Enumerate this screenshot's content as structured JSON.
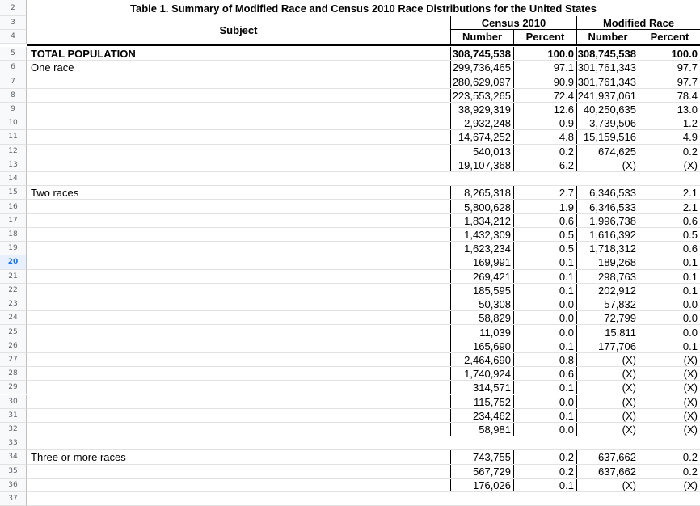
{
  "table": {
    "title": "Table 1. Summary of Modified Race and Census 2010 Race Distributions for the United States",
    "subject_header": "Subject",
    "group1": "Census 2010",
    "group2": "Modified Race",
    "col_number": "Number",
    "col_percent": "Percent"
  },
  "header_rownums": [
    "2",
    "3",
    "4"
  ],
  "rows": [
    {
      "n": "5",
      "subject": "TOTAL POPULATION",
      "bold": true,
      "c1": "308,745,538",
      "c2": "100.0",
      "c3": "308,745,538",
      "c4": "100.0"
    },
    {
      "n": "6",
      "subject": "One race",
      "c1": "299,736,465",
      "c2": "97.1",
      "c3": "301,761,343",
      "c4": "97.7"
    },
    {
      "n": "7",
      "subject": "",
      "c1": "280,629,097",
      "c2": "90.9",
      "c3": "301,761,343",
      "c4": "97.7"
    },
    {
      "n": "8",
      "subject": "",
      "c1": "223,553,265",
      "c2": "72.4",
      "c3": "241,937,061",
      "c4": "78.4"
    },
    {
      "n": "9",
      "subject": "",
      "c1": "38,929,319",
      "c2": "12.6",
      "c3": "40,250,635",
      "c4": "13.0"
    },
    {
      "n": "10",
      "subject": "",
      "c1": "2,932,248",
      "c2": "0.9",
      "c3": "3,739,506",
      "c4": "1.2"
    },
    {
      "n": "11",
      "subject": "",
      "c1": "14,674,252",
      "c2": "4.8",
      "c3": "15,159,516",
      "c4": "4.9"
    },
    {
      "n": "12",
      "subject": "",
      "c1": "540,013",
      "c2": "0.2",
      "c3": "674,625",
      "c4": "0.2"
    },
    {
      "n": "13",
      "subject": "",
      "c1": "19,107,368",
      "c2": "6.2",
      "c3": "(X)",
      "c4": "(X)"
    },
    {
      "n": "14",
      "subject": "",
      "c1": "",
      "c2": "",
      "c3": "",
      "c4": ""
    },
    {
      "n": "15",
      "subject": "Two races",
      "c1": "8,265,318",
      "c2": "2.7",
      "c3": "6,346,533",
      "c4": "2.1"
    },
    {
      "n": "16",
      "subject": "",
      "c1": "5,800,628",
      "c2": "1.9",
      "c3": "6,346,533",
      "c4": "2.1"
    },
    {
      "n": "17",
      "subject": "",
      "c1": "1,834,212",
      "c2": "0.6",
      "c3": "1,996,738",
      "c4": "0.6"
    },
    {
      "n": "18",
      "subject": "",
      "c1": "1,432,309",
      "c2": "0.5",
      "c3": "1,616,392",
      "c4": "0.5"
    },
    {
      "n": "19",
      "subject": "",
      "c1": "1,623,234",
      "c2": "0.5",
      "c3": "1,718,312",
      "c4": "0.6"
    },
    {
      "n": "20",
      "subject": "",
      "c1": "169,991",
      "c2": "0.1",
      "c3": "189,268",
      "c4": "0.1",
      "selected": true
    },
    {
      "n": "21",
      "subject": "",
      "c1": "269,421",
      "c2": "0.1",
      "c3": "298,763",
      "c4": "0.1"
    },
    {
      "n": "22",
      "subject": "",
      "c1": "185,595",
      "c2": "0.1",
      "c3": "202,912",
      "c4": "0.1"
    },
    {
      "n": "23",
      "subject": "",
      "c1": "50,308",
      "c2": "0.0",
      "c3": "57,832",
      "c4": "0.0"
    },
    {
      "n": "24",
      "subject": "",
      "c1": "58,829",
      "c2": "0.0",
      "c3": "72,799",
      "c4": "0.0"
    },
    {
      "n": "25",
      "subject": "",
      "c1": "11,039",
      "c2": "0.0",
      "c3": "15,811",
      "c4": "0.0"
    },
    {
      "n": "26",
      "subject": "",
      "c1": "165,690",
      "c2": "0.1",
      "c3": "177,706",
      "c4": "0.1"
    },
    {
      "n": "27",
      "subject": "",
      "c1": "2,464,690",
      "c2": "0.8",
      "c3": "(X)",
      "c4": "(X)"
    },
    {
      "n": "28",
      "subject": "",
      "c1": "1,740,924",
      "c2": "0.6",
      "c3": "(X)",
      "c4": "(X)"
    },
    {
      "n": "29",
      "subject": "",
      "c1": "314,571",
      "c2": "0.1",
      "c3": "(X)",
      "c4": "(X)"
    },
    {
      "n": "30",
      "subject": "",
      "c1": "115,752",
      "c2": "0.0",
      "c3": "(X)",
      "c4": "(X)"
    },
    {
      "n": "31",
      "subject": "",
      "c1": "234,462",
      "c2": "0.1",
      "c3": "(X)",
      "c4": "(X)"
    },
    {
      "n": "32",
      "subject": "",
      "c1": "58,981",
      "c2": "0.0",
      "c3": "(X)",
      "c4": "(X)"
    },
    {
      "n": "33",
      "subject": "",
      "c1": "",
      "c2": "",
      "c3": "",
      "c4": ""
    },
    {
      "n": "34",
      "subject": "Three or more races",
      "c1": "743,755",
      "c2": "0.2",
      "c3": "637,662",
      "c4": "0.2"
    },
    {
      "n": "35",
      "subject": "",
      "c1": "567,729",
      "c2": "0.2",
      "c3": "637,662",
      "c4": "0.2"
    },
    {
      "n": "36",
      "subject": "",
      "c1": "176,026",
      "c2": "0.1",
      "c3": "(X)",
      "c4": "(X)"
    },
    {
      "n": "37",
      "subject": "",
      "c1": "",
      "c2": "",
      "c3": "",
      "c4": ""
    }
  ]
}
